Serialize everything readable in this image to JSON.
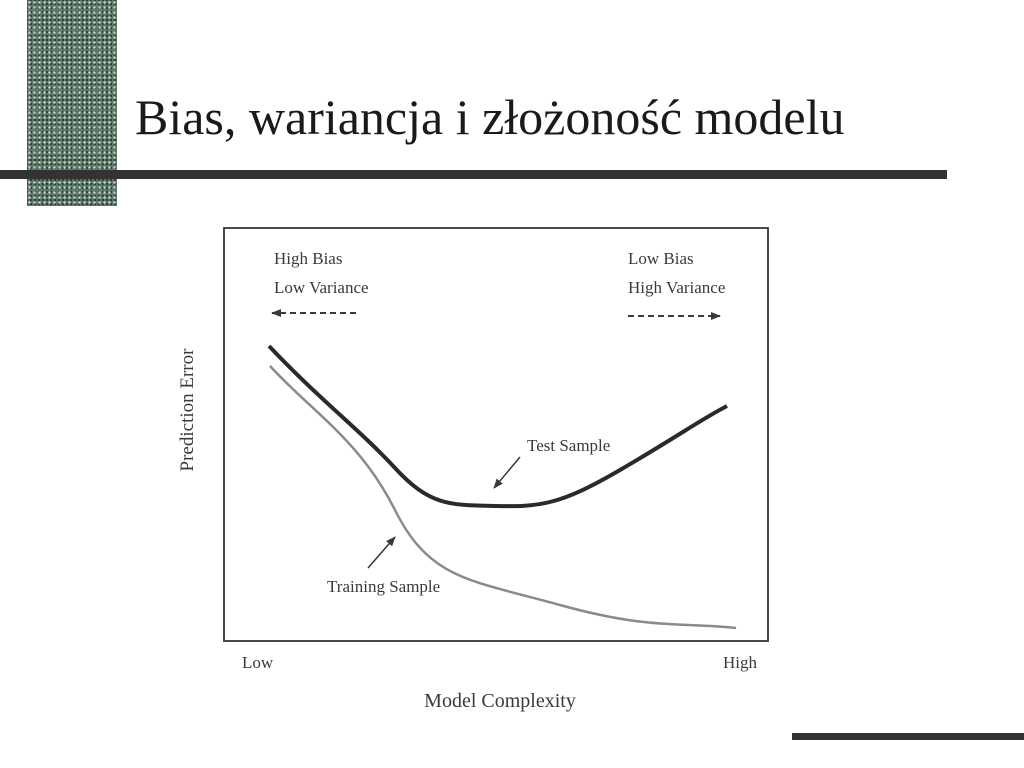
{
  "slide": {
    "title": "Bias, wariancja i złożoność modelu"
  },
  "diagram": {
    "left_regime": {
      "line1": "High Bias",
      "line2": "Low Variance"
    },
    "right_regime": {
      "line1": "Low Bias",
      "line2": "High Variance"
    },
    "y_axis_label": "Prediction Error",
    "x_axis_label": "Model Complexity",
    "x_low_label": "Low",
    "x_high_label": "High",
    "test_curve_label": "Test Sample",
    "training_curve_label": "Training Sample",
    "colors": {
      "test_curve": "#2a2a2a",
      "training_curve": "#8a8a8a",
      "frame": "#4a4a4a"
    }
  }
}
